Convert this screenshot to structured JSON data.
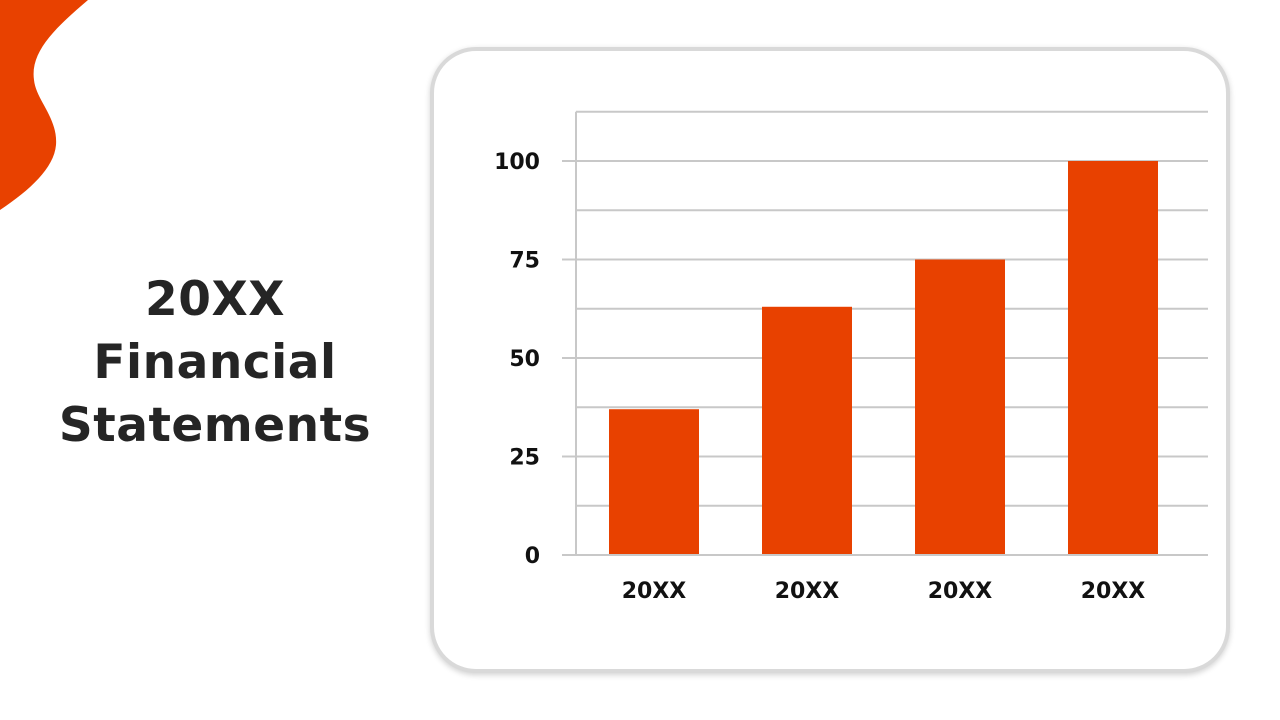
{
  "slide": {
    "title_lines": [
      "20XX",
      "Financial",
      "Statements"
    ],
    "accent_color": "#e84100",
    "text_color": "#252525"
  },
  "chart_data": {
    "type": "bar",
    "categories": [
      "20XX",
      "20XX",
      "20XX",
      "20XX"
    ],
    "values": [
      37,
      63,
      75,
      100
    ],
    "ylim": [
      0,
      112.5
    ],
    "yticks": [
      0,
      25,
      50,
      75,
      100
    ],
    "grid": true,
    "bar_color": "#e84100",
    "grid_color": "#c8c8c8",
    "title": "",
    "xlabel": "",
    "ylabel": ""
  }
}
